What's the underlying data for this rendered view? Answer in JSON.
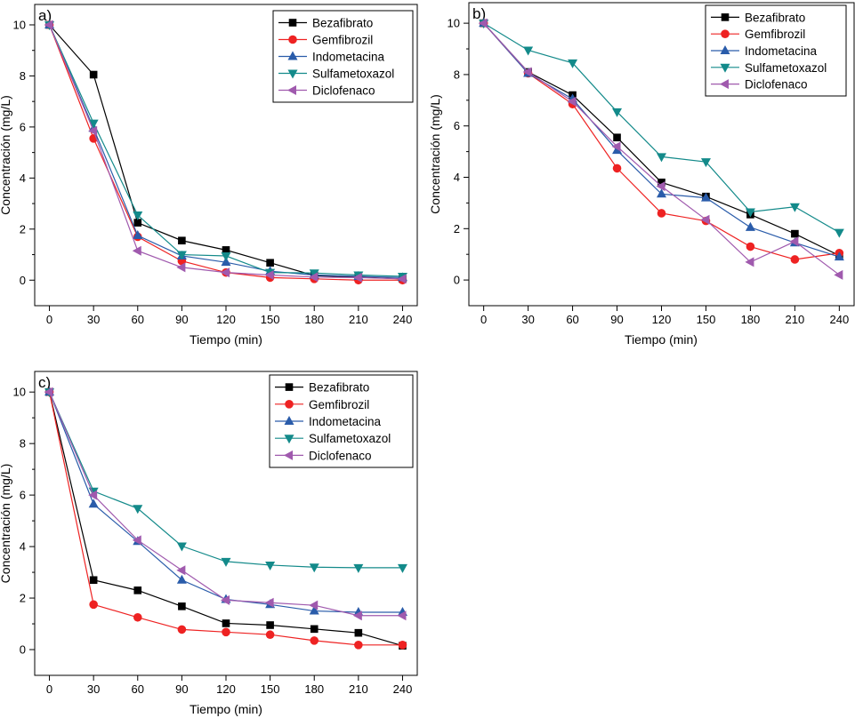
{
  "chart_data": [
    {
      "type": "line",
      "panel_label": "a)",
      "xlabel": "Tiempo (min)",
      "ylabel": "Concentración (mg/L)",
      "xlim": [
        -10,
        250
      ],
      "ylim": [
        -1,
        10.8
      ],
      "x_ticks": [
        0,
        30,
        60,
        90,
        120,
        150,
        180,
        210,
        240
      ],
      "y_ticks": [
        0,
        2,
        4,
        6,
        8,
        10
      ],
      "legend_position": "top-right",
      "grid": false,
      "x": [
        0,
        30,
        60,
        90,
        120,
        150,
        180,
        210,
        240
      ],
      "series": [
        {
          "name": "Bezafibrato",
          "color": "#000000",
          "marker": "square",
          "values": [
            10,
            8.05,
            2.25,
            1.55,
            1.18,
            0.68,
            0.18,
            0.12,
            0.05
          ]
        },
        {
          "name": "Gemfibrozil",
          "color": "#ee2222",
          "marker": "circle",
          "values": [
            10,
            5.55,
            1.7,
            0.75,
            0.3,
            0.1,
            0.05,
            0.0,
            0.0
          ]
        },
        {
          "name": "Indometacina",
          "color": "#2a5caa",
          "marker": "triangle-up",
          "values": [
            10,
            5.95,
            1.75,
            0.95,
            0.7,
            0.35,
            0.2,
            0.15,
            0.1
          ]
        },
        {
          "name": "Sulfametoxazol",
          "color": "#138a8a",
          "marker": "triangle-down",
          "values": [
            10,
            6.15,
            2.55,
            1.0,
            0.95,
            0.3,
            0.28,
            0.2,
            0.15
          ]
        },
        {
          "name": "Diclofenaco",
          "color": "#a05aae",
          "marker": "triangle-left",
          "values": [
            10,
            5.85,
            1.15,
            0.5,
            0.3,
            0.2,
            0.12,
            0.1,
            0.05
          ]
        }
      ]
    },
    {
      "type": "line",
      "panel_label": "b)",
      "xlabel": "Tiempo (min)",
      "ylabel": "Concentración (mg/L)",
      "xlim": [
        -10,
        250
      ],
      "ylim": [
        -1,
        10.8
      ],
      "x_ticks": [
        0,
        30,
        60,
        90,
        120,
        150,
        180,
        210,
        240
      ],
      "y_ticks": [
        0,
        2,
        4,
        6,
        8,
        10
      ],
      "legend_position": "top-right",
      "grid": false,
      "x": [
        0,
        30,
        60,
        90,
        120,
        150,
        180,
        210,
        240
      ],
      "series": [
        {
          "name": "Bezafibrato",
          "color": "#000000",
          "marker": "square",
          "values": [
            10,
            8.1,
            7.2,
            5.55,
            3.8,
            3.25,
            2.55,
            1.8,
            0.95
          ]
        },
        {
          "name": "Gemfibrozil",
          "color": "#ee2222",
          "marker": "circle",
          "values": [
            10,
            8.05,
            6.85,
            4.35,
            2.6,
            2.3,
            1.3,
            0.8,
            1.05
          ]
        },
        {
          "name": "Indometacina",
          "color": "#2a5caa",
          "marker": "triangle-up",
          "values": [
            10,
            8.05,
            7.05,
            5.05,
            3.35,
            3.2,
            2.05,
            1.45,
            0.9
          ]
        },
        {
          "name": "Sulfametoxazol",
          "color": "#138a8a",
          "marker": "triangle-down",
          "values": [
            10,
            8.95,
            8.45,
            6.55,
            4.8,
            4.6,
            2.65,
            2.85,
            1.85
          ]
        },
        {
          "name": "Diclofenaco",
          "color": "#a05aae",
          "marker": "triangle-left",
          "values": [
            10,
            8.1,
            6.95,
            5.2,
            3.65,
            2.35,
            0.7,
            1.5,
            0.2
          ]
        }
      ]
    },
    {
      "type": "line",
      "panel_label": "c)",
      "xlabel": "Tiempo (min)",
      "ylabel": "Concentración (mg/L)",
      "xlim": [
        -10,
        250
      ],
      "ylim": [
        -1,
        10.8
      ],
      "x_ticks": [
        0,
        30,
        60,
        90,
        120,
        150,
        180,
        210,
        240
      ],
      "y_ticks": [
        0,
        2,
        4,
        6,
        8,
        10
      ],
      "legend_position": "top-right",
      "grid": false,
      "x": [
        0,
        30,
        60,
        90,
        120,
        150,
        180,
        210,
        240
      ],
      "series": [
        {
          "name": "Bezafibrato",
          "color": "#000000",
          "marker": "square",
          "values": [
            10,
            2.7,
            2.3,
            1.68,
            1.02,
            0.95,
            0.8,
            0.65,
            0.15
          ]
        },
        {
          "name": "Gemfibrozil",
          "color": "#ee2222",
          "marker": "circle",
          "values": [
            10,
            1.75,
            1.25,
            0.78,
            0.68,
            0.58,
            0.35,
            0.18,
            0.18
          ]
        },
        {
          "name": "Indometacina",
          "color": "#2a5caa",
          "marker": "triangle-up",
          "values": [
            10,
            5.65,
            4.2,
            2.7,
            1.95,
            1.75,
            1.5,
            1.45,
            1.45
          ]
        },
        {
          "name": "Sulfametoxazol",
          "color": "#138a8a",
          "marker": "triangle-down",
          "values": [
            10,
            6.15,
            5.48,
            4.02,
            3.42,
            3.28,
            3.2,
            3.18,
            3.18
          ]
        },
        {
          "name": "Diclofenaco",
          "color": "#a05aae",
          "marker": "triangle-left",
          "values": [
            10,
            6.0,
            4.25,
            3.08,
            1.92,
            1.82,
            1.72,
            1.32,
            1.32
          ]
        }
      ]
    }
  ]
}
